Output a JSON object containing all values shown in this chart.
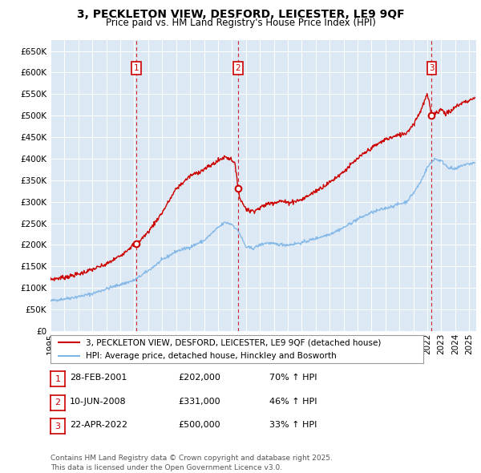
{
  "title": "3, PECKLETON VIEW, DESFORD, LEICESTER, LE9 9QF",
  "subtitle": "Price paid vs. HM Land Registry's House Price Index (HPI)",
  "ylim": [
    0,
    675000
  ],
  "yticks": [
    0,
    50000,
    100000,
    150000,
    200000,
    250000,
    300000,
    350000,
    400000,
    450000,
    500000,
    550000,
    600000,
    650000
  ],
  "xlim_start": 1995.0,
  "xlim_end": 2025.5,
  "bg_color": "#dce9f5",
  "grid_color": "#ffffff",
  "sale_color": "#cc0000",
  "hpi_color": "#7db4e6",
  "sales": [
    {
      "year": 2001.163,
      "price": 202000,
      "label": "1"
    },
    {
      "year": 2008.44,
      "price": 331000,
      "label": "2"
    },
    {
      "year": 2022.31,
      "price": 500000,
      "label": "3"
    }
  ],
  "vline_color": "#cc0000",
  "legend_entries": [
    "3, PECKLETON VIEW, DESFORD, LEICESTER, LE9 9QF (detached house)",
    "HPI: Average price, detached house, Hinckley and Bosworth"
  ],
  "table_data": [
    [
      "1",
      "28-FEB-2001",
      "£202,000",
      "70% ↑ HPI"
    ],
    [
      "2",
      "10-JUN-2008",
      "£331,000",
      "46% ↑ HPI"
    ],
    [
      "3",
      "22-APR-2022",
      "£500,000",
      "33% ↑ HPI"
    ]
  ],
  "footnote": "Contains HM Land Registry data © Crown copyright and database right 2025.\nThis data is licensed under the Open Government Licence v3.0.",
  "title_fontsize": 10,
  "subtitle_fontsize": 8.5,
  "tick_fontsize": 7.5,
  "legend_fontsize": 7.5,
  "table_fontsize": 8,
  "footnote_fontsize": 6.5
}
